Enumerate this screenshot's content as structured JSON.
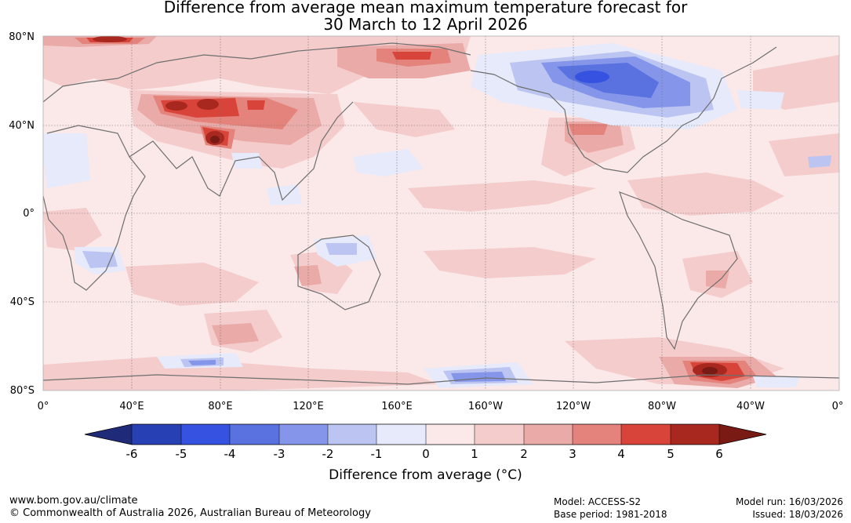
{
  "title_line1": "Difference from average mean maximum temperature forecast for",
  "title_line2": "30 March to 12 April 2026",
  "lat_labels": [
    "80°N",
    "40°N",
    "0°",
    "40°S",
    "80°S"
  ],
  "lon_labels": [
    "0°",
    "40°E",
    "80°E",
    "120°E",
    "160°E",
    "160°W",
    "120°W",
    "80°W",
    "40°W",
    "0°"
  ],
  "colorbar": {
    "ticks": [
      "-6",
      "-5",
      "-4",
      "-3",
      "-2",
      "-1",
      "0",
      "1",
      "2",
      "3",
      "4",
      "5",
      "6"
    ],
    "label": "Difference from average (°C)",
    "colors": {
      "below": "#1f2a78",
      "neg6_5": "#2740b4",
      "neg5_4": "#3552e0",
      "neg4_3": "#5a72e0",
      "neg3_2": "#8596ea",
      "neg2_1": "#bcc5f2",
      "neg1_0": "#e6eafa",
      "pos0_1": "#fbe8e8",
      "pos1_2": "#f4cccc",
      "pos2_3": "#eaaaa8",
      "pos3_4": "#e4827c",
      "pos4_5": "#d8443a",
      "pos5_6": "#a82820",
      "above": "#7a1a14"
    }
  },
  "footer": {
    "website": "www.bom.gov.au/climate",
    "copyright": "© Commonwealth of Australia 2026, Australian Bureau of Meteorology",
    "model": "Model: ACCESS-S2",
    "base_period": "Base period: 1981-2018",
    "model_run": "Model run: 16/03/2026",
    "issued": "Issued: 18/03/2026"
  }
}
